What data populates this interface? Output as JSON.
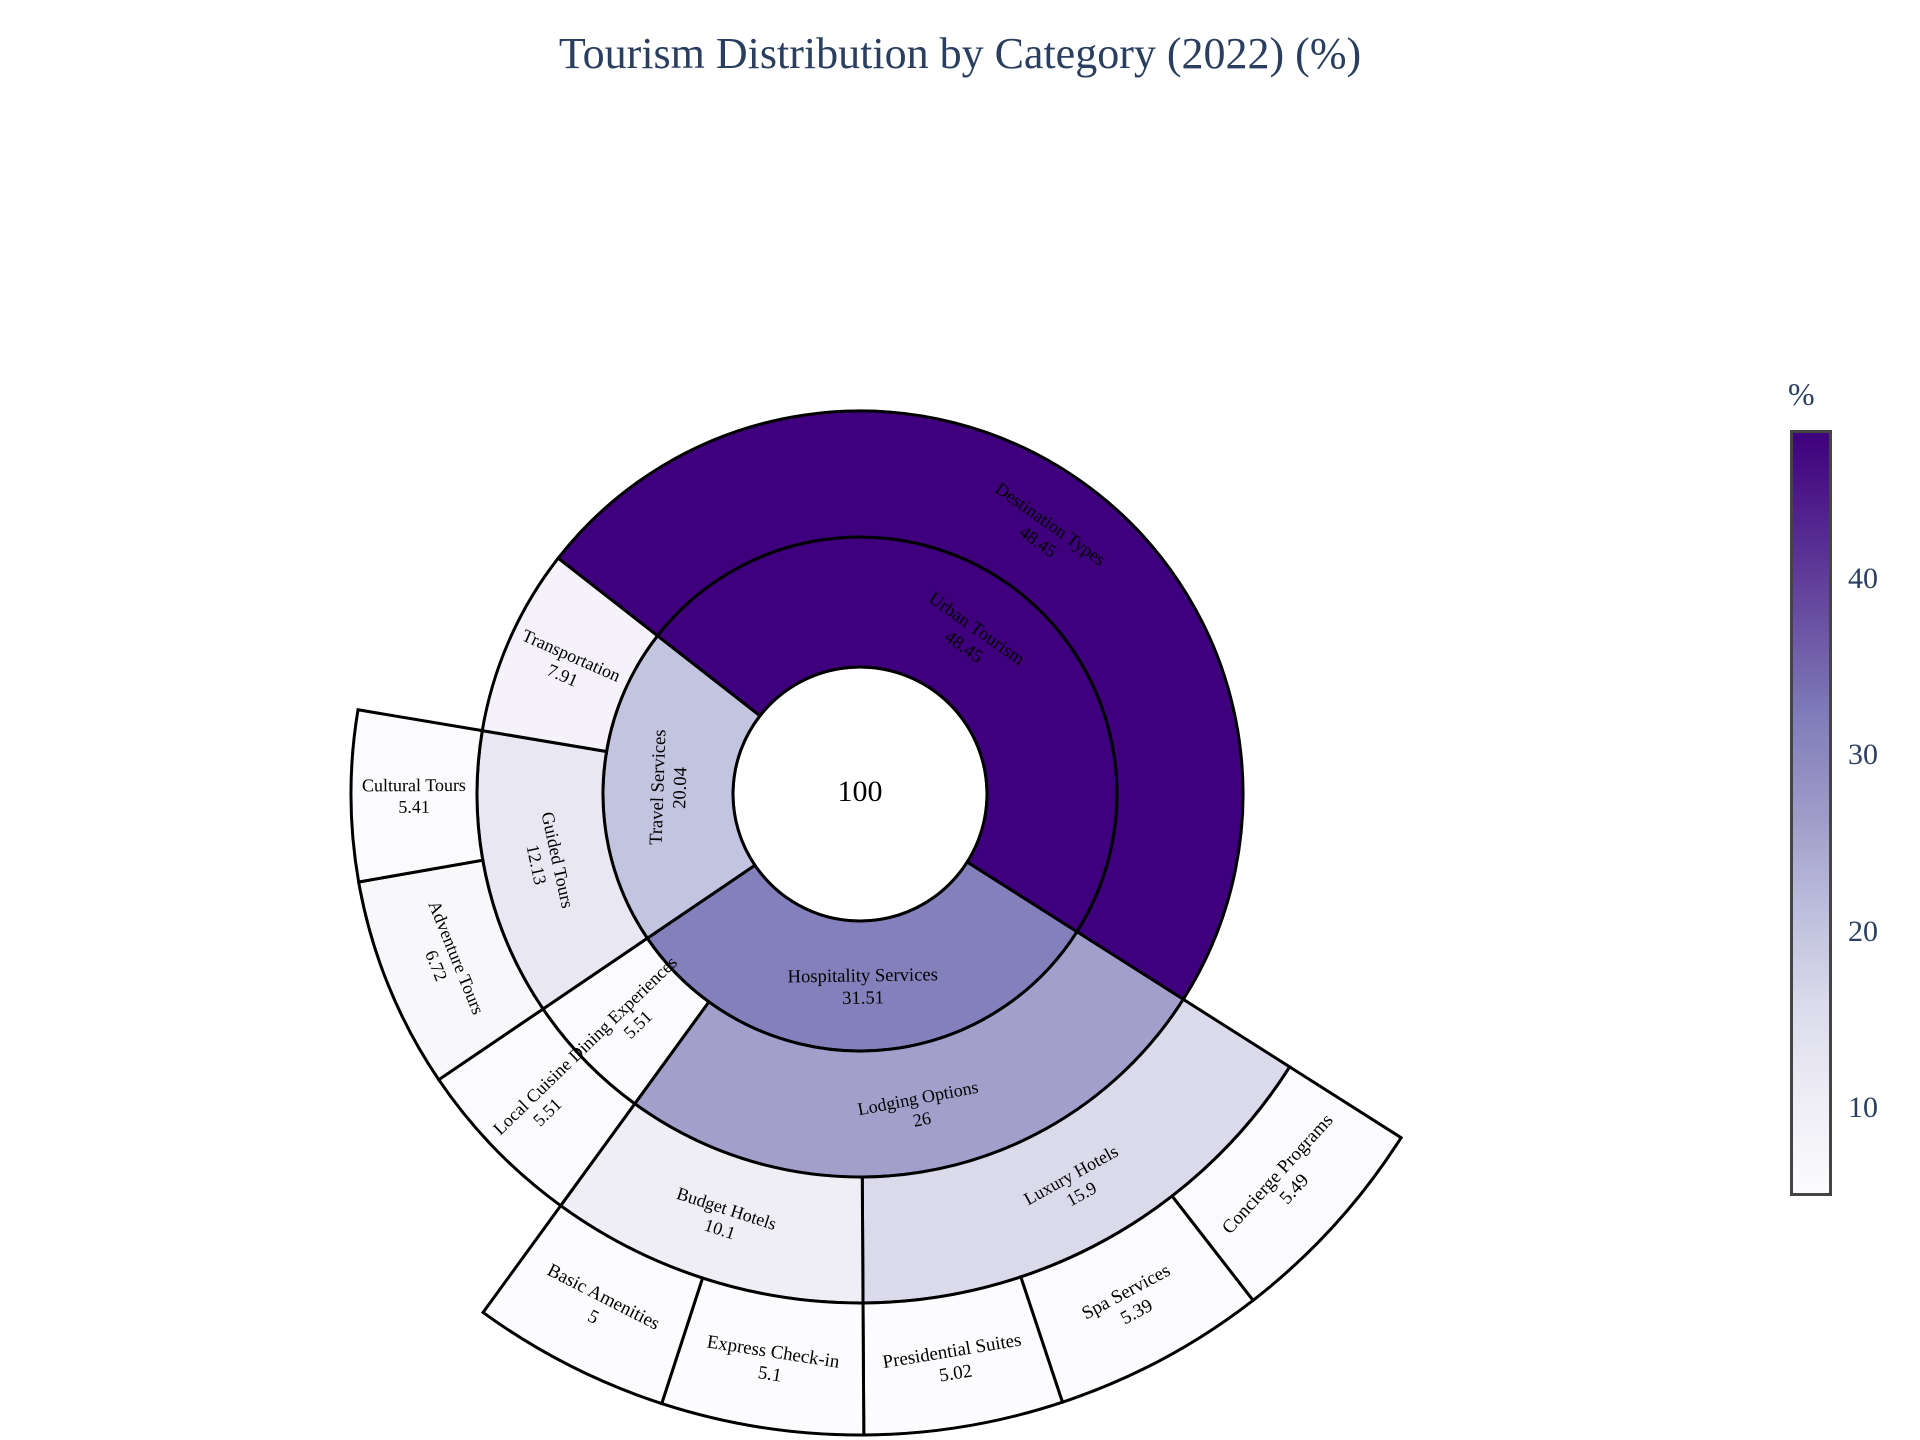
{
  "chart_data": {
    "type": "sunburst",
    "title": "Tourism Distribution by Category (2022) (%)",
    "root": {
      "label": "",
      "value": 100
    },
    "nodes": [
      {
        "id": "urban",
        "label": "Urban Tourism",
        "value": 48.45,
        "parent": null
      },
      {
        "id": "dest",
        "label": "Destination Types",
        "value": 48.45,
        "parent": "urban"
      },
      {
        "id": "hosp",
        "label": "Hospitality Services",
        "value": 31.51,
        "parent": null
      },
      {
        "id": "lodging",
        "label": "Lodging Options",
        "value": 26,
        "parent": "hosp"
      },
      {
        "id": "luxury",
        "label": "Luxury Hotels",
        "value": 15.9,
        "parent": "lodging"
      },
      {
        "id": "concierge",
        "label": "Concierge Programs",
        "value": 5.49,
        "parent": "luxury"
      },
      {
        "id": "spa",
        "label": "Spa Services",
        "value": 5.39,
        "parent": "luxury"
      },
      {
        "id": "presidential",
        "label": "Presidential Suites",
        "value": 5.02,
        "parent": "luxury"
      },
      {
        "id": "budget",
        "label": "Budget Hotels",
        "value": 10.1,
        "parent": "lodging"
      },
      {
        "id": "express",
        "label": "Express Check-in",
        "value": 5.1,
        "parent": "budget"
      },
      {
        "id": "basic",
        "label": "Basic Amenities",
        "value": 5,
        "parent": "budget"
      },
      {
        "id": "dining",
        "label": "Dining Experiences",
        "value": 5.51,
        "parent": "hosp"
      },
      {
        "id": "cuisine",
        "label": "Local Cuisine",
        "value": 5.51,
        "parent": "dining"
      },
      {
        "id": "travel",
        "label": "Travel Services",
        "value": 20.04,
        "parent": null
      },
      {
        "id": "guided",
        "label": "Guided Tours",
        "value": 12.13,
        "parent": "travel"
      },
      {
        "id": "adventure",
        "label": "Adventure Tours",
        "value": 6.72,
        "parent": "guided"
      },
      {
        "id": "cultural",
        "label": "Cultural Tours",
        "value": 5.41,
        "parent": "guided"
      },
      {
        "id": "transport",
        "label": "Transportation",
        "value": 7.91,
        "parent": "travel"
      }
    ],
    "colorbar": {
      "title": "%",
      "range": [
        5,
        48.45
      ],
      "ticks": [
        10,
        20,
        30,
        40
      ],
      "colors": [
        "#fcfbfd",
        "#efedf5",
        "#dadaeb",
        "#bcbddc",
        "#9e9ac8",
        "#807dba",
        "#6a51a3",
        "#54278f",
        "#3f007d"
      ]
    }
  }
}
